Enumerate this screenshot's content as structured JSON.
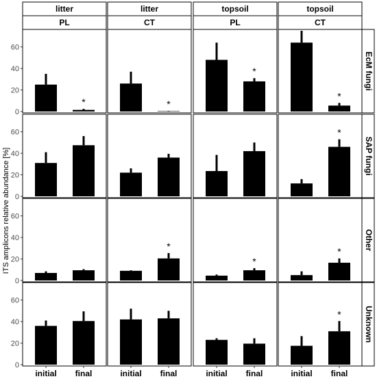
{
  "chart_data": {
    "type": "bar",
    "ylabel": "ITS amplicons relative abundance [%]",
    "ylim": [
      0,
      75
    ],
    "yticks": [
      "0",
      "20",
      "40",
      "60"
    ],
    "categories": [
      "initial",
      "final"
    ],
    "columns": [
      {
        "top": "litter",
        "bottom": "PL"
      },
      {
        "top": "litter",
        "bottom": "CT"
      },
      {
        "top": "topsoil",
        "bottom": "PL"
      },
      {
        "top": "topsoil",
        "bottom": "CT"
      }
    ],
    "rows": [
      "EcM fungi",
      "SAP fungi",
      "Other",
      "Unknown"
    ],
    "marker": "*",
    "panels": [
      [
        {
          "values": [
            25,
            1.5
          ],
          "errors": [
            10,
            1
          ],
          "significant": [
            false,
            true
          ]
        },
        {
          "values": [
            26,
            0.3
          ],
          "errors": [
            11,
            0.3
          ],
          "significant": [
            false,
            true
          ]
        },
        {
          "values": [
            48,
            28
          ],
          "errors": [
            16,
            3
          ],
          "significant": [
            false,
            true
          ]
        },
        {
          "values": [
            64,
            5.5
          ],
          "errors": [
            11,
            2.5
          ],
          "significant": [
            false,
            true
          ]
        }
      ],
      [
        {
          "values": [
            31,
            47.5
          ],
          "errors": [
            10,
            8.5
          ],
          "significant": [
            false,
            false
          ]
        },
        {
          "values": [
            22,
            36
          ],
          "errors": [
            4,
            3.5
          ],
          "significant": [
            false,
            false
          ]
        },
        {
          "values": [
            23.5,
            42
          ],
          "errors": [
            15,
            8
          ],
          "significant": [
            false,
            false
          ]
        },
        {
          "values": [
            12,
            46
          ],
          "errors": [
            4,
            7
          ],
          "significant": [
            false,
            true
          ]
        }
      ],
      [
        {
          "values": [
            7,
            9.5
          ],
          "errors": [
            1.5,
            1
          ],
          "significant": [
            false,
            false
          ]
        },
        {
          "values": [
            9,
            20.5
          ],
          "errors": [
            0.5,
            5
          ],
          "significant": [
            false,
            true
          ]
        },
        {
          "values": [
            4.5,
            9.5
          ],
          "errors": [
            1,
            2
          ],
          "significant": [
            false,
            true
          ]
        },
        {
          "values": [
            5,
            16.5
          ],
          "errors": [
            3.5,
            4
          ],
          "significant": [
            false,
            true
          ]
        }
      ],
      [
        {
          "values": [
            36,
            40.5
          ],
          "errors": [
            5,
            9
          ],
          "significant": [
            false,
            false
          ]
        },
        {
          "values": [
            42,
            43
          ],
          "errors": [
            10,
            7
          ],
          "significant": [
            false,
            false
          ]
        },
        {
          "values": [
            23,
            19.5
          ],
          "errors": [
            1.5,
            5
          ],
          "significant": [
            false,
            false
          ]
        },
        {
          "values": [
            17.5,
            31
          ],
          "errors": [
            9,
            9.5
          ],
          "significant": [
            false,
            true
          ]
        }
      ]
    ]
  }
}
